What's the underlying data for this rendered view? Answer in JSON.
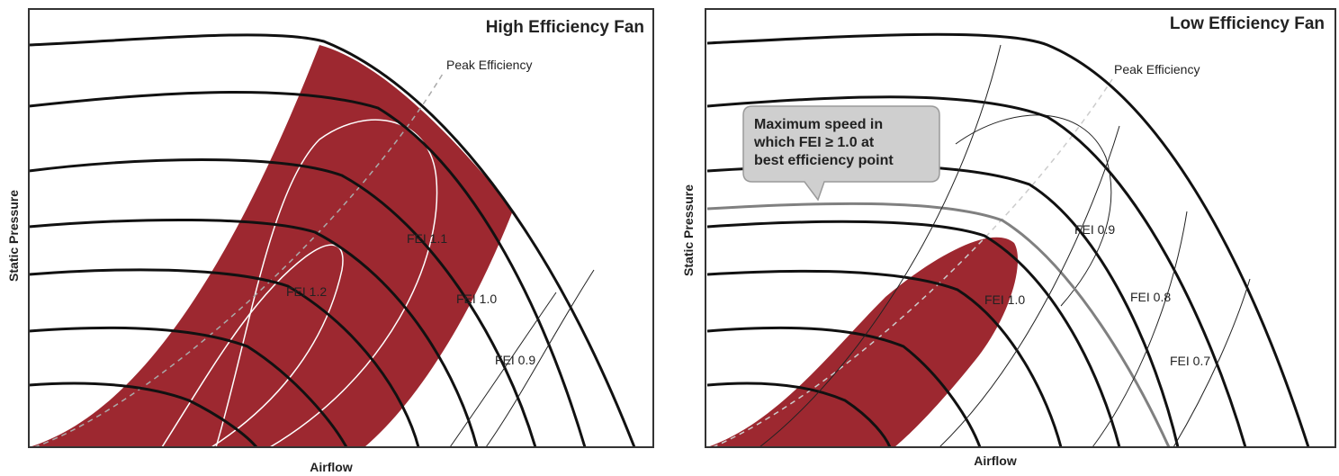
{
  "left": {
    "title": "High Efficiency Fan",
    "peak_label": "Peak Efficiency",
    "x_axis": "Airflow",
    "y_axis": "Static Pressure",
    "fei_labels": [
      "FEI 1.2",
      "FEI 1.1",
      "FEI 1.0",
      "FEI 0.9"
    ]
  },
  "right": {
    "title": "Low Efficiency Fan",
    "peak_label": "Peak Efficiency",
    "x_axis": "Airflow",
    "y_axis": "Static Pressure",
    "callout_lines": [
      "Maximum speed in",
      "which FEI ≥ 1.0 at",
      "best efficiency point"
    ],
    "fei_labels": [
      "FEI 1.0",
      "FEI 0.9",
      "FEI 0.8",
      "FEI 0.7"
    ]
  },
  "colors": {
    "region": "#9d2830",
    "curve": "#111111",
    "frame": "#333333",
    "callout_fill": "#cfcfcf",
    "highlight_curve": "#808080"
  }
}
